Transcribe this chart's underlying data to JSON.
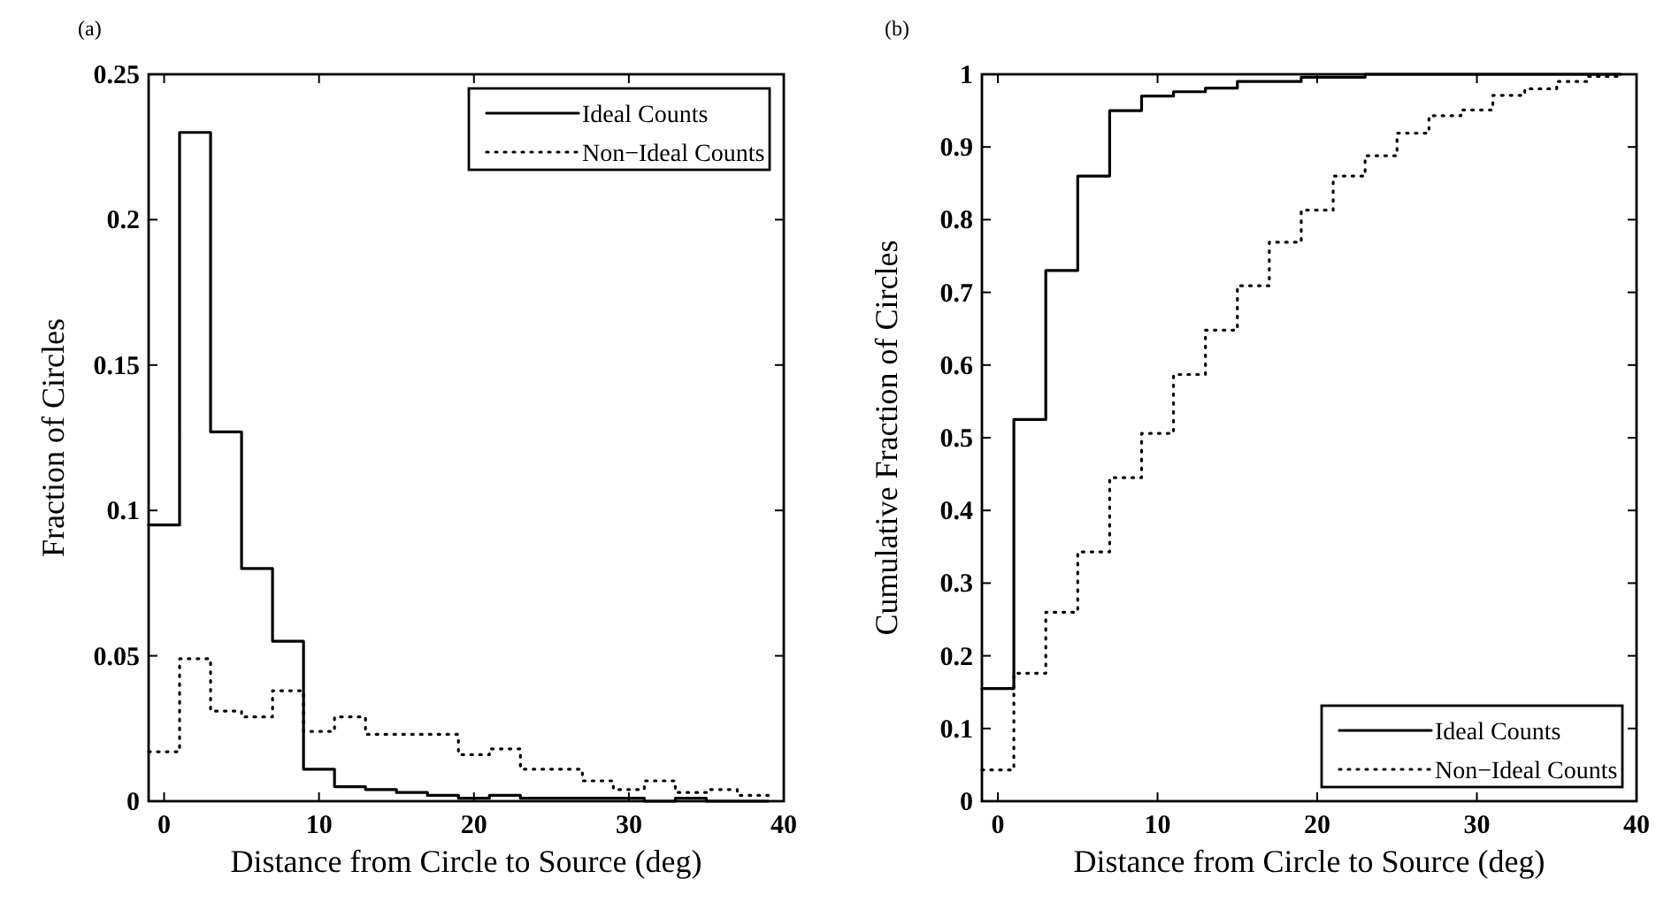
{
  "chart_data": [
    {
      "type": "step",
      "title": "(a)",
      "xlabel": "Distance from Circle to Source (deg)",
      "ylabel": "Fraction of Circles",
      "xlim": [
        -1,
        40
      ],
      "xticks": [
        0,
        10,
        20,
        30,
        40
      ],
      "ylim": [
        0,
        0.25
      ],
      "yticks": [
        0,
        0.05,
        0.1,
        0.15,
        0.2,
        0.25
      ],
      "grid": false,
      "legend": "top right",
      "x": [
        -1,
        1,
        3,
        5,
        7,
        9,
        11,
        13,
        15,
        17,
        19,
        21,
        23,
        25,
        27,
        29,
        31,
        33,
        35,
        37,
        39
      ],
      "series": [
        {
          "name": "Ideal Counts",
          "color": "#000000",
          "line_style": "solid",
          "values": [
            0.095,
            0.23,
            0.127,
            0.08,
            0.055,
            0.011,
            0.005,
            0.004,
            0.003,
            0.002,
            0.001,
            0.002,
            0.001,
            0.001,
            0.001,
            0.001,
            0.0,
            0.001,
            0.0,
            0.0,
            0.0
          ]
        },
        {
          "name": "Non−Ideal Counts",
          "color": "#000000",
          "line_style": "dotted",
          "values": [
            0.017,
            0.049,
            0.031,
            0.029,
            0.038,
            0.024,
            0.029,
            0.023,
            0.023,
            0.023,
            0.016,
            0.018,
            0.011,
            0.011,
            0.007,
            0.004,
            0.007,
            0.003,
            0.004,
            0.002,
            0.001
          ]
        }
      ]
    },
    {
      "type": "step",
      "title": "(b)",
      "xlabel": "Distance from Circle to Source (deg)",
      "ylabel": "Cumulative Fraction of Circles",
      "xlim": [
        -1,
        40
      ],
      "xticks": [
        0,
        10,
        20,
        30,
        40
      ],
      "ylim": [
        0,
        1
      ],
      "yticks": [
        0,
        0.1,
        0.2,
        0.3,
        0.4,
        0.5,
        0.6,
        0.7,
        0.8,
        0.9,
        1
      ],
      "grid": false,
      "legend": "bottom right",
      "x": [
        -1,
        1,
        3,
        5,
        7,
        9,
        11,
        13,
        15,
        17,
        19,
        21,
        23,
        25,
        27,
        29,
        31,
        33,
        35,
        37,
        39
      ],
      "series": [
        {
          "name": "Ideal Counts",
          "color": "#000000",
          "line_style": "solid",
          "values": [
            0.155,
            0.525,
            0.73,
            0.86,
            0.95,
            0.97,
            0.976,
            0.981,
            0.99,
            0.99,
            0.996,
            0.996,
            1.0,
            1.0,
            1.0,
            1.0,
            1.0,
            1.0,
            1.0,
            1.0,
            1.0
          ]
        },
        {
          "name": "Non−Ideal Counts",
          "color": "#000000",
          "line_style": "dotted",
          "values": [
            0.043,
            0.176,
            0.26,
            0.343,
            0.445,
            0.506,
            0.587,
            0.648,
            0.709,
            0.769,
            0.813,
            0.86,
            0.888,
            0.919,
            0.943,
            0.951,
            0.971,
            0.98,
            0.99,
            0.997,
            0.998
          ]
        }
      ]
    }
  ]
}
